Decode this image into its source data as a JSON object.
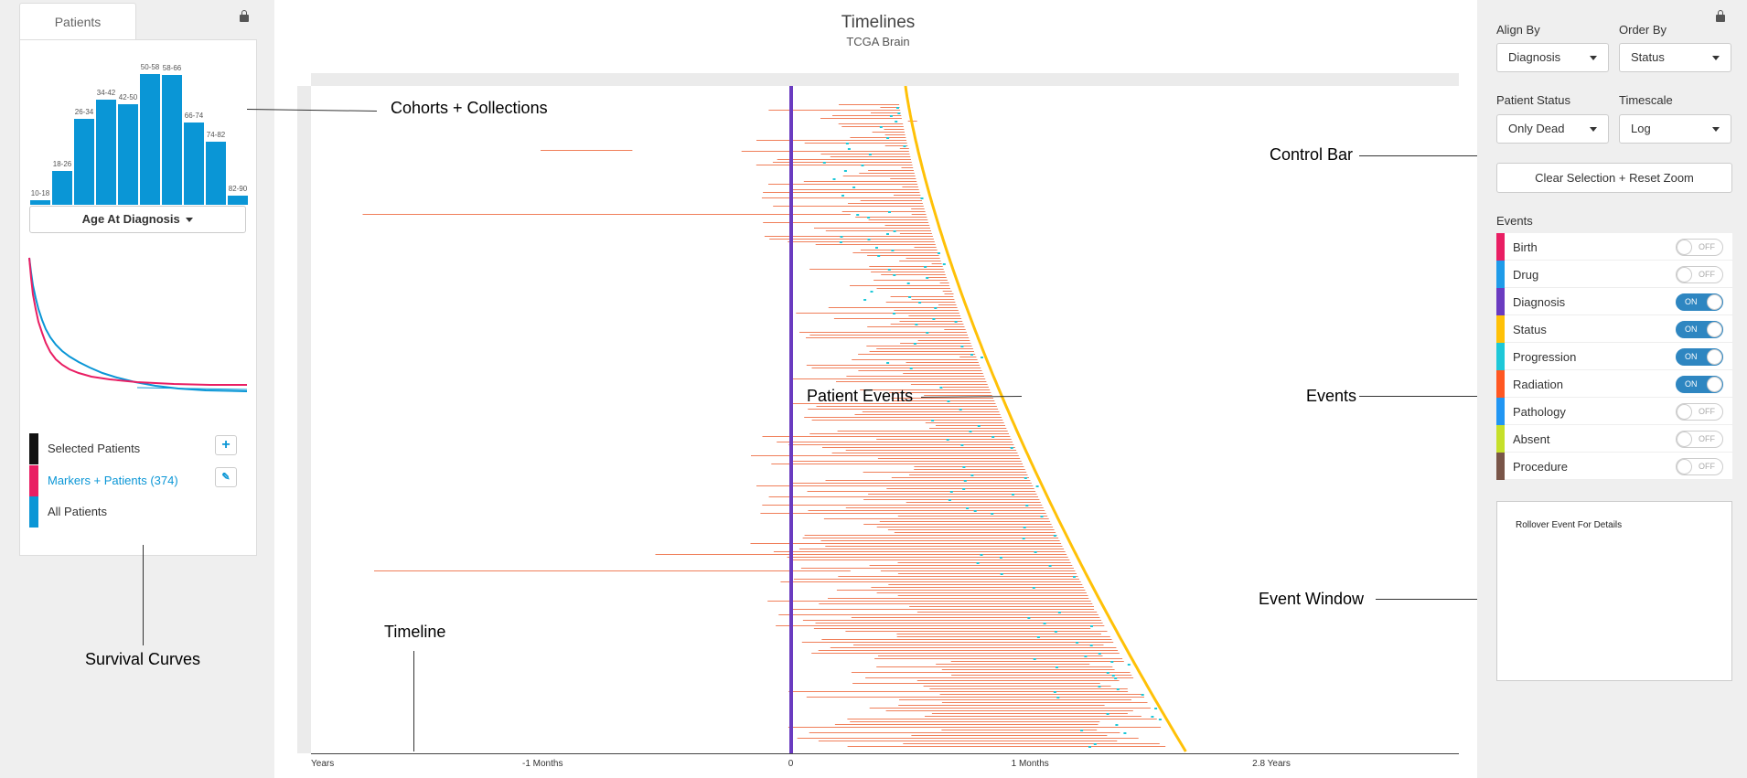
{
  "left": {
    "tab_label": "Patients",
    "histogram": {
      "bars": [
        {
          "label": "10-18",
          "value": 4
        },
        {
          "label": "18-26",
          "value": 28
        },
        {
          "label": "26-34",
          "value": 72
        },
        {
          "label": "34-42",
          "value": 88
        },
        {
          "label": "42-50",
          "value": 84
        },
        {
          "label": "50-58",
          "value": 110
        },
        {
          "label": "58-66",
          "value": 109
        },
        {
          "label": "66-74",
          "value": 69
        },
        {
          "label": "74-82",
          "value": 53
        },
        {
          "label": "82-90",
          "value": 8
        }
      ],
      "max": 115
    },
    "age_select_label": "Age At Diagnosis",
    "legend": [
      {
        "label": "Selected Patients",
        "color": "#111111"
      },
      {
        "label": "Markers + Patients (374)",
        "color": "#e91e63"
      },
      {
        "label": "All Patients",
        "color": "#0a96d6"
      }
    ]
  },
  "annotations": {
    "cohorts": "Cohorts + Collections",
    "survival": "Survival Curves",
    "timeline": "Timeline",
    "patient_events": "Patient Events",
    "control_bar": "Control Bar",
    "events": "Events",
    "event_window": "Event Window"
  },
  "center": {
    "title": "Timelines",
    "subtitle": "TCGA Brain",
    "ticks": [
      {
        "label": "Years",
        "pos": 0
      },
      {
        "label": "-1 Months",
        "pos": 0.2
      },
      {
        "label": "0",
        "pos": 0.418
      },
      {
        "label": "1 Months",
        "pos": 0.626
      },
      {
        "label": "2.8 Years",
        "pos": 0.836
      }
    ]
  },
  "right": {
    "align_by": {
      "label": "Align By",
      "value": "Diagnosis"
    },
    "order_by": {
      "label": "Order By",
      "value": "Status"
    },
    "patient_status": {
      "label": "Patient Status",
      "value": "Only Dead"
    },
    "timescale": {
      "label": "Timescale",
      "value": "Log"
    },
    "clear_button": "Clear Selection + Reset Zoom",
    "events_heading": "Events",
    "events": [
      {
        "label": "Birth",
        "color": "#e91e63",
        "state": "OFF"
      },
      {
        "label": "Drug",
        "color": "#1e9be9",
        "state": "OFF"
      },
      {
        "label": "Diagnosis",
        "color": "#6a3bc0",
        "state": "ON"
      },
      {
        "label": "Status",
        "color": "#ffc107",
        "state": "ON"
      },
      {
        "label": "Progression",
        "color": "#1ec8d8",
        "state": "ON"
      },
      {
        "label": "Radiation",
        "color": "#ff5722",
        "state": "ON"
      },
      {
        "label": "Pathology",
        "color": "#2196f3",
        "state": "OFF"
      },
      {
        "label": "Absent",
        "color": "#c6e02a",
        "state": "OFF"
      },
      {
        "label": "Procedure",
        "color": "#795548",
        "state": "OFF"
      }
    ],
    "event_window_text": "Rollover Event For Details"
  },
  "colors": {
    "diagnosis_line": "#6a3bc0",
    "status_curve": "#ffc107",
    "radiation": "#f07f5a",
    "progression": "#1ec8d8"
  }
}
